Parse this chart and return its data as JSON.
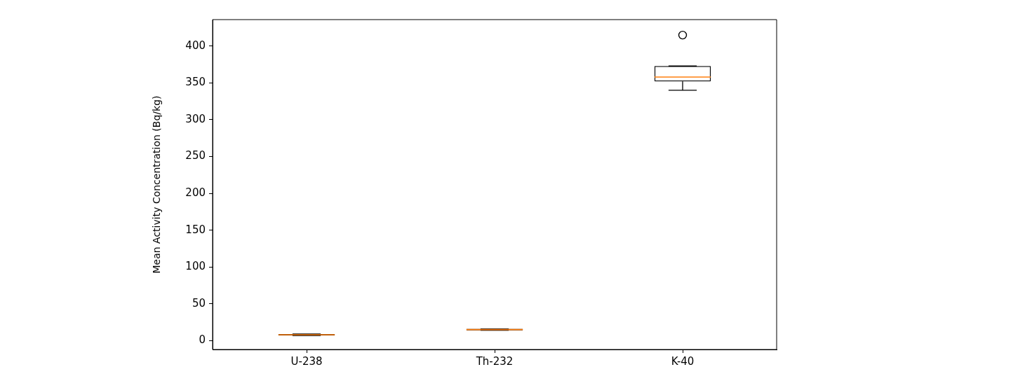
{
  "chart_data": {
    "type": "box",
    "ylabel": "Mean Activity Concentration (Bq/kg)",
    "categories": [
      "U-238",
      "Th-232",
      "K-40"
    ],
    "series": [
      {
        "color": "#000000",
        "boxes": [
          {
            "low": 7,
            "q1": 7,
            "median": 8,
            "q3": 9,
            "high": 9
          },
          {
            "low": 14,
            "q1": 14,
            "median": 15,
            "q3": 16,
            "high": 16
          },
          {
            "low": 340,
            "q1": 352,
            "median": 358,
            "q3": 373,
            "high": 373,
            "outliers": [
              415
            ]
          }
        ]
      }
    ],
    "ylim": [
      -12,
      436
    ],
    "yticks": [
      0,
      50,
      100,
      150,
      200,
      250,
      300,
      350,
      400
    ],
    "grid": false
  }
}
